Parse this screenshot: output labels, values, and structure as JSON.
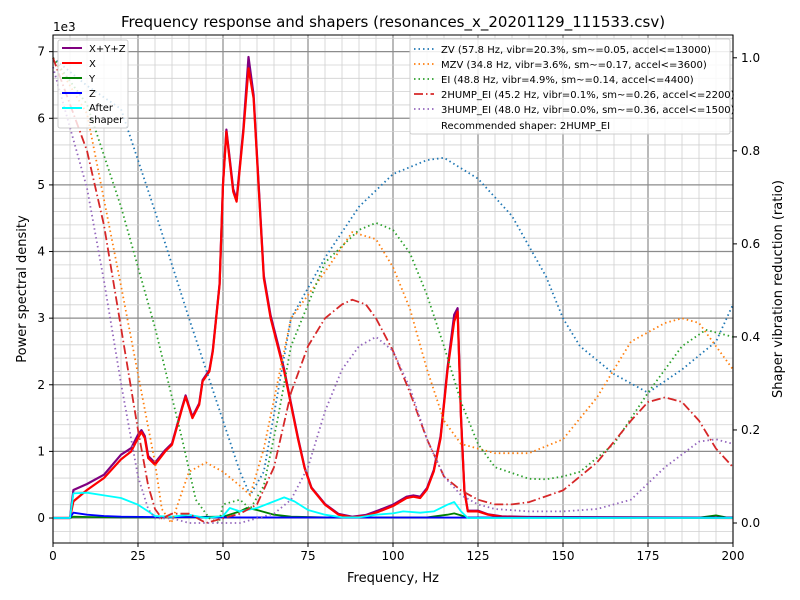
{
  "chart_data": {
    "type": "line",
    "title": "Frequency response and shapers (resonances_x_20201129_111533.csv)",
    "xlabel": "Frequency, Hz",
    "ylabel": "Power spectral density",
    "ylabel_right": "Shaper vibration reduction (ratio)",
    "y_offset_label": "1e3",
    "xlim": [
      0,
      200
    ],
    "ylim": [
      -375,
      7250
    ],
    "ylim_right": [
      -0.043,
      1.049
    ],
    "x_ticks": [
      "0",
      "25",
      "50",
      "75",
      "100",
      "125",
      "150",
      "175",
      "200"
    ],
    "y_ticks": [
      "0",
      "1",
      "2",
      "3",
      "4",
      "5",
      "6",
      "7"
    ],
    "y_ticks_right": [
      "0.0",
      "0.2",
      "0.4",
      "0.6",
      "0.8",
      "1.0"
    ],
    "grid": true,
    "psd_legend_position": "top-left",
    "shaper_legend_position": "top-right",
    "psd_series": [
      {
        "name": "X+Y+Z",
        "color": "#800080",
        "x": [
          0,
          5,
          6,
          10,
          15,
          20,
          23,
          25,
          26,
          27,
          28,
          30,
          33,
          35,
          38,
          39,
          41,
          43,
          44,
          46,
          47,
          49,
          50,
          51,
          53,
          54,
          56,
          57.5,
          59,
          61,
          62,
          64,
          66,
          68,
          70,
          72,
          74,
          76,
          80,
          84,
          88,
          92,
          96,
          100,
          104,
          106,
          108,
          110,
          112,
          114,
          116,
          118,
          119,
          120,
          121,
          122,
          125,
          128,
          132,
          140,
          200
        ],
        "values": [
          0,
          0,
          420,
          510,
          650,
          950,
          1050,
          1250,
          1320,
          1230,
          930,
          830,
          1020,
          1120,
          1670,
          1840,
          1520,
          1720,
          2070,
          2220,
          2520,
          3520,
          5020,
          5830,
          4940,
          4780,
          5850,
          6920,
          6350,
          4550,
          3640,
          3040,
          2640,
          2230,
          1720,
          1220,
          760,
          460,
          210,
          60,
          20,
          45,
          120,
          200,
          320,
          340,
          320,
          450,
          720,
          1230,
          2240,
          3050,
          3150,
          1530,
          420,
          110,
          110,
          55,
          25,
          15,
          5
        ]
      },
      {
        "name": "X",
        "color": "#ff0000",
        "x": [
          0,
          5,
          6,
          10,
          15,
          20,
          23,
          25,
          26,
          27,
          28,
          30,
          33,
          35,
          38,
          39,
          41,
          43,
          44,
          46,
          47,
          49,
          50,
          51,
          53,
          54,
          56,
          57.5,
          59,
          61,
          62,
          64,
          66,
          68,
          70,
          72,
          74,
          76,
          80,
          84,
          88,
          92,
          96,
          100,
          104,
          106,
          108,
          110,
          112,
          114,
          116,
          118,
          119,
          120,
          121,
          122,
          125,
          128,
          132,
          140,
          200
        ],
        "values": [
          0,
          0,
          250,
          420,
          600,
          880,
          1000,
          1200,
          1290,
          1200,
          900,
          800,
          1000,
          1100,
          1650,
          1820,
          1500,
          1700,
          2050,
          2200,
          2500,
          3500,
          5000,
          5800,
          4900,
          4750,
          5800,
          6750,
          6300,
          4500,
          3600,
          3000,
          2600,
          2200,
          1700,
          1200,
          750,
          450,
          200,
          50,
          10,
          30,
          100,
          180,
          300,
          320,
          300,
          430,
          700,
          1200,
          2200,
          2950,
          3100,
          1500,
          400,
          100,
          100,
          50,
          20,
          10,
          0
        ]
      },
      {
        "name": "Y",
        "color": "#008000",
        "x": [
          0,
          5,
          6,
          10,
          20,
          30,
          40,
          50,
          55,
          57,
          60,
          65,
          70,
          80,
          110,
          116,
          118,
          120,
          122,
          190,
          195,
          198,
          200
        ],
        "values": [
          0,
          0,
          20,
          15,
          10,
          10,
          15,
          20,
          100,
          150,
          120,
          50,
          20,
          10,
          10,
          50,
          70,
          40,
          5,
          5,
          40,
          10,
          5
        ]
      },
      {
        "name": "Z",
        "color": "#0000ff",
        "x": [
          0,
          5,
          6,
          10,
          15,
          20,
          30,
          50,
          100,
          200
        ],
        "values": [
          0,
          0,
          80,
          50,
          30,
          20,
          15,
          10,
          8,
          5
        ]
      },
      {
        "name": "After shaper",
        "color": "#00ffff",
        "x": [
          0,
          5,
          6,
          10,
          15,
          20,
          25,
          28,
          30,
          35,
          40,
          45,
          50,
          52,
          55,
          60,
          65,
          68,
          71,
          75,
          80,
          85,
          90,
          95,
          100,
          103,
          108,
          112,
          116,
          118,
          120,
          122,
          200
        ],
        "values": [
          0,
          0,
          370,
          380,
          340,
          300,
          200,
          100,
          30,
          20,
          50,
          0,
          30,
          150,
          100,
          150,
          250,
          310,
          250,
          120,
          50,
          10,
          10,
          50,
          70,
          100,
          80,
          100,
          200,
          240,
          100,
          0,
          0
        ]
      }
    ],
    "shaper_series": [
      {
        "name": "ZV (57.8 Hz, vibr=20.3%, sm~=0.05, accel<=13000)",
        "color": "#1f77b4",
        "style": "dotted",
        "x": [
          0,
          10,
          20,
          30,
          40,
          50,
          55,
          58,
          62,
          70,
          80,
          90,
          100,
          110,
          115,
          125,
          135,
          145,
          150,
          155,
          165,
          175,
          185,
          195,
          200
        ],
        "values": [
          1.0,
          0.94,
          0.89,
          0.67,
          0.44,
          0.22,
          0.11,
          0.06,
          0.11,
          0.44,
          0.57,
          0.68,
          0.75,
          0.78,
          0.785,
          0.74,
          0.66,
          0.53,
          0.44,
          0.38,
          0.32,
          0.28,
          0.33,
          0.39,
          0.47
        ]
      },
      {
        "name": "MZV (34.8 Hz, vibr=3.6%, sm~=0.17, accel<=3600)",
        "color": "#ff7f0e",
        "style": "dotted",
        "x": [
          0,
          10,
          20,
          30,
          32,
          34.8,
          40,
          45,
          50,
          55,
          58,
          62,
          66,
          70,
          80,
          88,
          95,
          100,
          105,
          110,
          115,
          120,
          125,
          130,
          140,
          150,
          160,
          170,
          180,
          185,
          190,
          200
        ],
        "values": [
          1.0,
          0.88,
          0.51,
          0.13,
          0.03,
          0.0,
          0.11,
          0.13,
          0.11,
          0.08,
          0.06,
          0.16,
          0.3,
          0.44,
          0.54,
          0.625,
          0.61,
          0.55,
          0.46,
          0.33,
          0.22,
          0.17,
          0.16,
          0.15,
          0.15,
          0.18,
          0.27,
          0.39,
          0.43,
          0.44,
          0.43,
          0.33
        ]
      },
      {
        "name": "EI (48.8 Hz, vibr=4.9%, sm~=0.14, accel<=4400)",
        "color": "#2ca02c",
        "style": "dotted",
        "x": [
          0,
          10,
          20,
          30,
          38,
          42,
          46,
          48.8,
          50,
          55,
          58,
          62,
          66,
          70,
          80,
          90,
          95,
          100,
          105,
          110,
          115,
          120,
          125,
          130,
          140,
          145,
          150,
          155,
          165,
          175,
          185,
          192,
          200
        ],
        "values": [
          1.0,
          0.9,
          0.68,
          0.42,
          0.18,
          0.05,
          0.01,
          0.0,
          0.04,
          0.05,
          0.03,
          0.08,
          0.22,
          0.38,
          0.56,
          0.63,
          0.645,
          0.63,
          0.58,
          0.49,
          0.38,
          0.26,
          0.17,
          0.12,
          0.095,
          0.094,
          0.1,
          0.11,
          0.17,
          0.28,
          0.38,
          0.415,
          0.4
        ]
      },
      {
        "name": "2HUMP_EI (45.2 Hz, vibr=0.1%, sm~=0.26, accel<=2200)",
        "color": "#d62728",
        "style": "dashdot",
        "x": [
          0,
          10,
          15,
          20,
          25,
          28,
          30,
          32,
          35,
          40,
          45,
          50,
          55,
          60,
          65,
          70,
          75,
          80,
          85,
          88,
          92,
          95,
          100,
          105,
          110,
          115,
          120,
          125,
          130,
          135,
          140,
          150,
          160,
          170,
          175,
          180,
          185,
          190,
          195,
          200
        ],
        "values": [
          1.0,
          0.8,
          0.64,
          0.42,
          0.2,
          0.08,
          0.03,
          0.01,
          0.02,
          0.02,
          0.0,
          0.01,
          0.02,
          0.04,
          0.12,
          0.28,
          0.38,
          0.44,
          0.47,
          0.48,
          0.47,
          0.44,
          0.37,
          0.28,
          0.18,
          0.1,
          0.07,
          0.05,
          0.04,
          0.04,
          0.045,
          0.07,
          0.13,
          0.22,
          0.26,
          0.27,
          0.26,
          0.22,
          0.16,
          0.12
        ]
      },
      {
        "name": "3HUMP_EI (48.0 Hz, vibr=0.0%, sm~=0.36, accel<=1500)",
        "color": "#9467bd",
        "style": "dotted",
        "x": [
          0,
          10,
          15,
          20,
          25,
          28,
          30,
          35,
          40,
          48,
          55,
          60,
          65,
          70,
          75,
          80,
          85,
          90,
          95,
          100,
          105,
          110,
          115,
          120,
          125,
          130,
          140,
          150,
          160,
          170,
          180,
          190,
          195,
          200
        ],
        "values": [
          0.98,
          0.72,
          0.52,
          0.3,
          0.1,
          0.03,
          0.01,
          0.01,
          0.0,
          0.0,
          0.0,
          0.01,
          0.02,
          0.05,
          0.12,
          0.24,
          0.33,
          0.38,
          0.4,
          0.37,
          0.29,
          0.18,
          0.1,
          0.06,
          0.04,
          0.03,
          0.025,
          0.025,
          0.03,
          0.05,
          0.12,
          0.175,
          0.18,
          0.17
        ]
      }
    ],
    "recommended_text": "Recommended shaper: 2HUMP_EI"
  }
}
